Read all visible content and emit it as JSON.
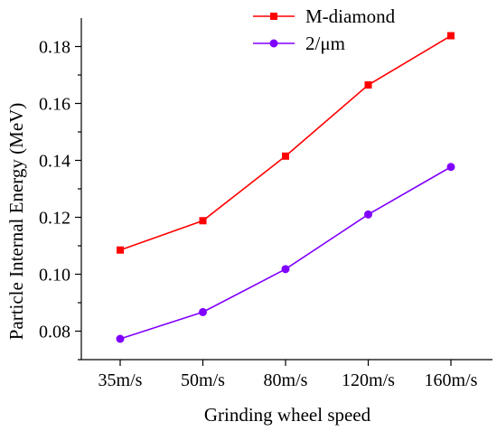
{
  "chart_data": {
    "type": "line",
    "title": "",
    "xlabel": "Grinding wheel speed",
    "ylabel": "Particle Internal Energy (MeV)",
    "categories": [
      "35m/s",
      "50m/s",
      "80m/s",
      "120m/s",
      "160m/s"
    ],
    "ylim": [
      0.07,
      0.19
    ],
    "yticks": [
      "0.08",
      "0.10",
      "0.12",
      "0.14",
      "0.16",
      "0.18"
    ],
    "grid": false,
    "legend_position": "top-center",
    "series": [
      {
        "name": "M-diamond",
        "color": "#ff0000",
        "marker": "square",
        "values": [
          0.1085,
          0.1188,
          0.1415,
          0.1665,
          0.1838
        ]
      },
      {
        "name": "2/μm",
        "color": "#8000ff",
        "marker": "circle",
        "values": [
          0.0773,
          0.0867,
          0.1018,
          0.121,
          0.1377
        ]
      }
    ]
  }
}
